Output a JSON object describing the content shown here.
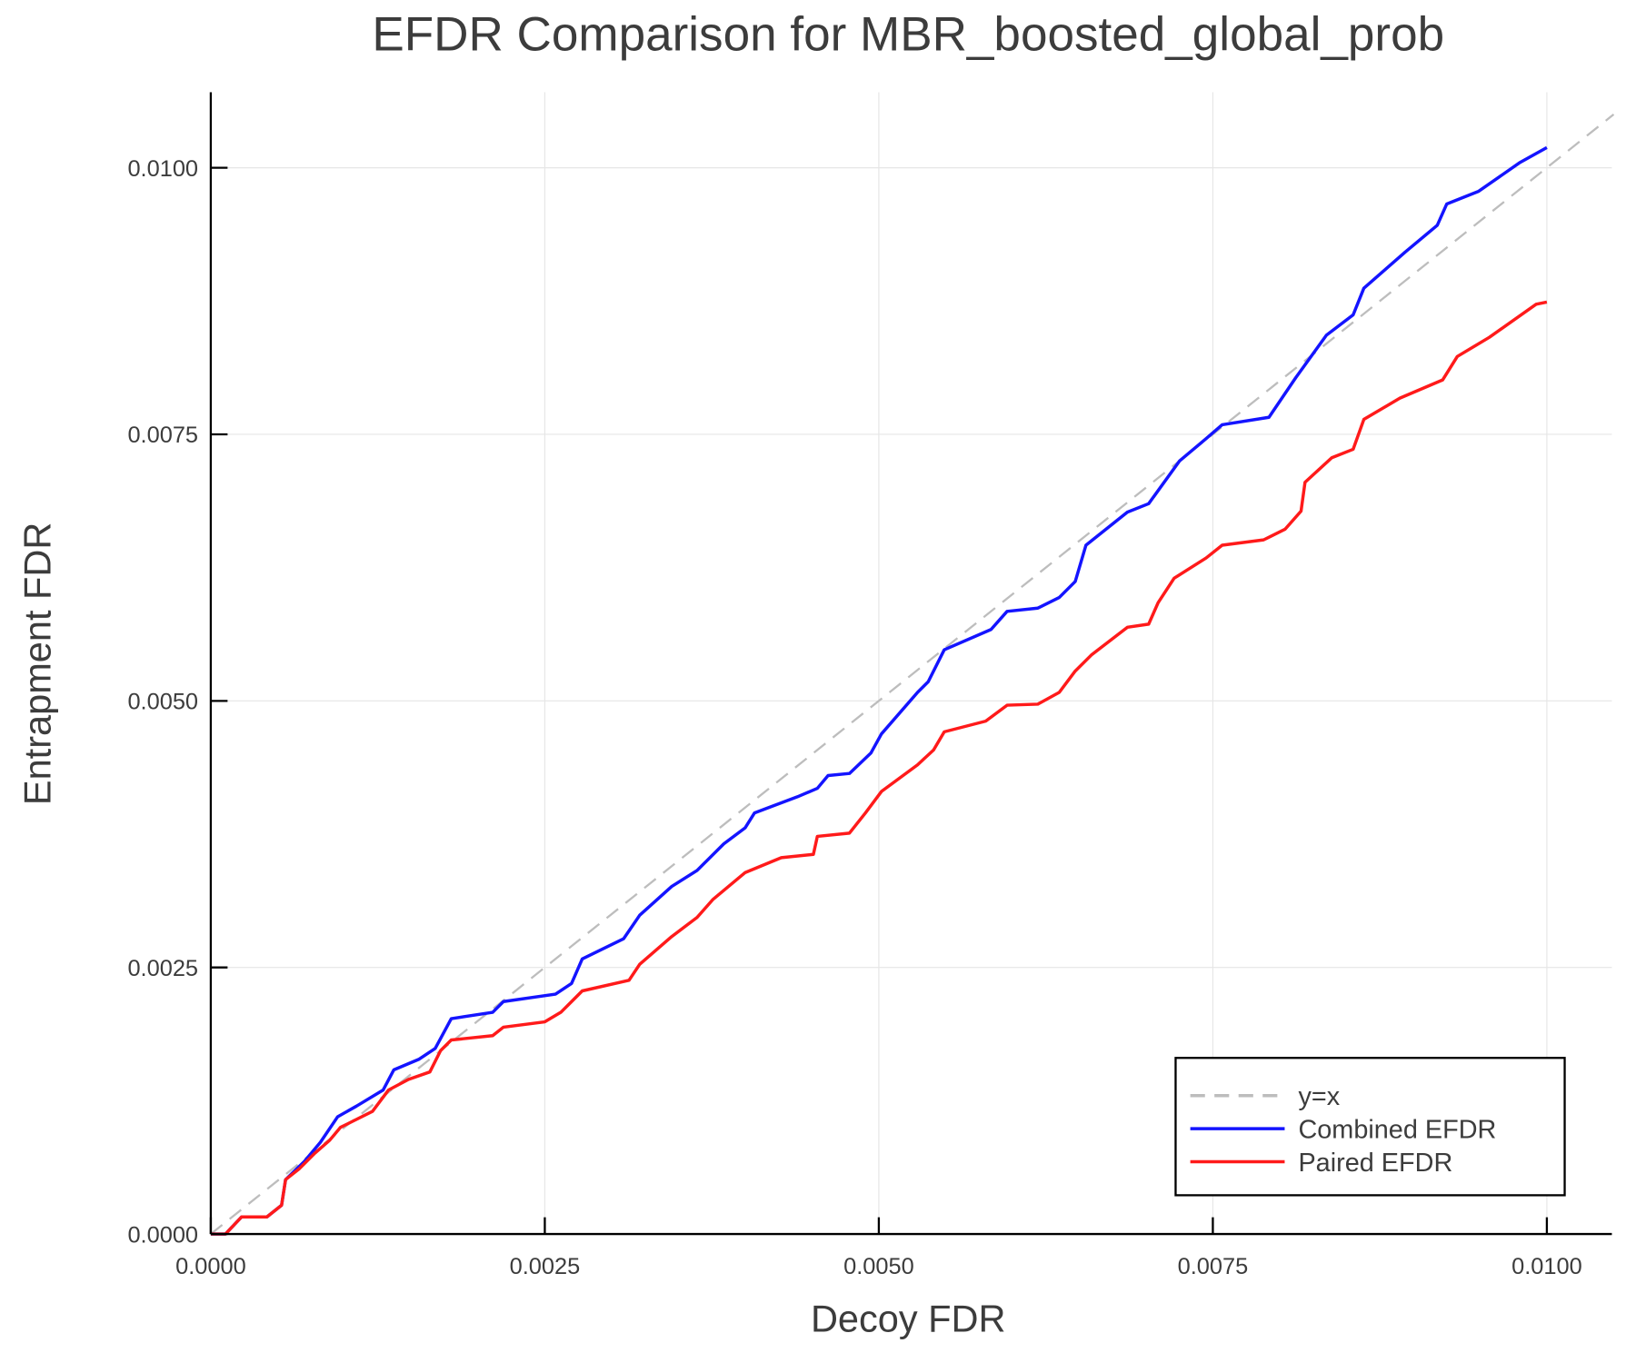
{
  "chart_data": {
    "type": "line",
    "title": "EFDR Comparison for MBR_boosted_global_prob",
    "xlabel": "Decoy FDR",
    "ylabel": "Entrapment FDR",
    "xlim": [
      0,
      0.0105
    ],
    "ylim": [
      0,
      0.0107
    ],
    "grid": true,
    "legend_position": "bottom-right",
    "xticks": [
      0,
      0.0025,
      0.005,
      0.0075,
      0.01
    ],
    "xtick_labels": [
      "0.0000",
      "0.0025",
      "0.0050",
      "0.0075",
      "0.0100"
    ],
    "yticks": [
      0,
      0.0025,
      0.005,
      0.0075,
      0.01
    ],
    "ytick_labels": [
      "0.0000",
      "0.0025",
      "0.0050",
      "0.0075",
      "0.0100"
    ],
    "series": [
      {
        "name": "y=x",
        "color": "#bdbdbd",
        "dash": true,
        "x": [
          0,
          0.0105
        ],
        "y": [
          0,
          0.0105
        ]
      },
      {
        "name": "Combined EFDR",
        "color": "#1414ff",
        "x": [
          0,
          0.00011,
          0.00023,
          0.00042,
          0.00053,
          0.00056,
          0.0007,
          0.00082,
          0.00095,
          0.00109,
          0.00129,
          0.00137,
          0.00156,
          0.00168,
          0.0018,
          0.00211,
          0.00219,
          0.00258,
          0.0027,
          0.00278,
          0.00309,
          0.00321,
          0.00345,
          0.00364,
          0.00384,
          0.004,
          0.00407,
          0.00439,
          0.00454,
          0.00462,
          0.00478,
          0.00494,
          0.00502,
          0.00529,
          0.00537,
          0.00549,
          0.00584,
          0.00596,
          0.00619,
          0.00635,
          0.00647,
          0.00655,
          0.00686,
          0.00702,
          0.00725,
          0.00745,
          0.00757,
          0.00792,
          0.00812,
          0.00835,
          0.00855,
          0.00863,
          0.00894,
          0.00918,
          0.00925,
          0.00949,
          0.0098,
          0.01
        ],
        "y": [
          0,
          0,
          0.00016,
          0.00016,
          0.00027,
          0.00051,
          0.00068,
          0.00086,
          0.0011,
          0.0012,
          0.00135,
          0.00154,
          0.00164,
          0.00174,
          0.00202,
          0.00208,
          0.00218,
          0.00225,
          0.00235,
          0.00258,
          0.00277,
          0.00299,
          0.00326,
          0.00341,
          0.00366,
          0.00381,
          0.00395,
          0.0041,
          0.00418,
          0.0043,
          0.00432,
          0.00451,
          0.00469,
          0.00508,
          0.00518,
          0.00548,
          0.00567,
          0.00584,
          0.00587,
          0.00597,
          0.00612,
          0.00646,
          0.00677,
          0.00685,
          0.00725,
          0.00746,
          0.00759,
          0.00766,
          0.00803,
          0.00843,
          0.00862,
          0.00887,
          0.00921,
          0.00946,
          0.00966,
          0.00978,
          0.01005,
          0.01019
        ]
      },
      {
        "name": "Paired EFDR",
        "color": "#ff1a1a",
        "x": [
          0,
          0.00011,
          0.00023,
          0.00042,
          0.00053,
          0.00056,
          0.00066,
          0.00078,
          0.00089,
          0.00097,
          0.00121,
          0.00133,
          0.00148,
          0.00164,
          0.00172,
          0.0018,
          0.00211,
          0.00219,
          0.0025,
          0.00262,
          0.00278,
          0.00313,
          0.00321,
          0.00345,
          0.00364,
          0.00376,
          0.004,
          0.00427,
          0.00451,
          0.00454,
          0.00478,
          0.0049,
          0.00502,
          0.00529,
          0.00541,
          0.00549,
          0.0058,
          0.00596,
          0.00619,
          0.00635,
          0.00647,
          0.00659,
          0.00686,
          0.00702,
          0.00709,
          0.00721,
          0.00745,
          0.00757,
          0.00788,
          0.00804,
          0.00816,
          0.00819,
          0.00839,
          0.00855,
          0.00863,
          0.0089,
          0.00922,
          0.00933,
          0.00957,
          0.00992,
          0.01
        ],
        "y": [
          0,
          0,
          0.00016,
          0.00016,
          0.00027,
          0.00051,
          0.00061,
          0.00076,
          0.00088,
          0.001,
          0.00115,
          0.00135,
          0.00145,
          0.00152,
          0.00172,
          0.00182,
          0.00186,
          0.00194,
          0.00199,
          0.00208,
          0.00228,
          0.00238,
          0.00253,
          0.00279,
          0.00297,
          0.00314,
          0.00339,
          0.00353,
          0.00356,
          0.00373,
          0.00376,
          0.00395,
          0.00415,
          0.0044,
          0.00454,
          0.00471,
          0.00481,
          0.00496,
          0.00497,
          0.00508,
          0.00528,
          0.00543,
          0.00569,
          0.00572,
          0.00592,
          0.00615,
          0.00634,
          0.00646,
          0.00651,
          0.00661,
          0.00678,
          0.00705,
          0.00728,
          0.00736,
          0.00764,
          0.00784,
          0.00801,
          0.00823,
          0.00841,
          0.00872,
          0.00874
        ]
      }
    ]
  }
}
